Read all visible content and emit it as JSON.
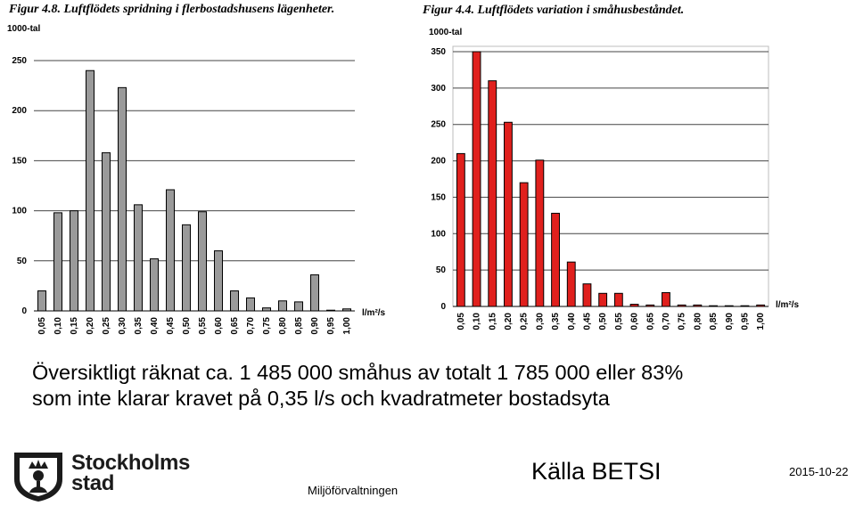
{
  "charts_meta": [
    {
      "title": "Figur 4.8. Luftflödets spridning i flerbostadshusens lägenheter.",
      "unit_label": "1000-tal",
      "x_unit": "l/m²/s"
    },
    {
      "title": "Figur 4.4. Luftflödets variation i småhusbeståndet.",
      "unit_label": "1000-tal",
      "x_unit": "l/m²/s"
    }
  ],
  "chart_data": [
    {
      "type": "bar",
      "title": "Figur 4.8. Luftflödets spridning i flerbostadshusens lägenheter.",
      "ylabel": "1000-tal",
      "xlabel": "l/m²/s",
      "categories": [
        "0,05",
        "0,10",
        "0,15",
        "0,20",
        "0,25",
        "0,30",
        "0,35",
        "0,40",
        "0,45",
        "0,50",
        "0,55",
        "0,60",
        "0,65",
        "0,70",
        "0,75",
        "0,80",
        "0,85",
        "0,90",
        "0,95",
        "1,00"
      ],
      "values": [
        20,
        98,
        100,
        240,
        158,
        223,
        106,
        52,
        121,
        86,
        99,
        60,
        20,
        13,
        3,
        10,
        9,
        36,
        0,
        2
      ],
      "ylim": [
        0,
        250
      ],
      "yticks": [
        0,
        50,
        100,
        150,
        200,
        250
      ],
      "grid": true,
      "bar_color": "#9a9a9a"
    },
    {
      "type": "bar",
      "title": "Figur 4.4. Luftflödets variation i småhusbeståndet.",
      "ylabel": "1000-tal",
      "xlabel": "l/m²/s",
      "categories": [
        "0,05",
        "0,10",
        "0,15",
        "0,20",
        "0,25",
        "0,30",
        "0,35",
        "0,40",
        "0,45",
        "0,50",
        "0,55",
        "0,60",
        "0,65",
        "0,70",
        "0,75",
        "0,80",
        "0,85",
        "0,90",
        "0,95",
        "1,00"
      ],
      "values": [
        210,
        350,
        310,
        253,
        170,
        201,
        128,
        61,
        31,
        18,
        18,
        3,
        2,
        19,
        2,
        2,
        0,
        0,
        0,
        2
      ],
      "ylim": [
        0,
        350
      ],
      "yticks": [
        0,
        50,
        100,
        150,
        200,
        250,
        300,
        350
      ],
      "grid": true,
      "bar_color": "#e0201d"
    }
  ],
  "caption": {
    "line1": "Översiktligt räknat ca. 1 485 000 småhus av totalt 1 785 000 eller 83%",
    "line2": "som inte klarar kravet på 0,35 l/s och kvadratmeter bostadsyta"
  },
  "footer": {
    "logo_line1": "Stockholms",
    "logo_line2": "stad",
    "department": "Miljöförvaltningen",
    "source": "Källa BETSI",
    "date": "2015-10-22"
  }
}
